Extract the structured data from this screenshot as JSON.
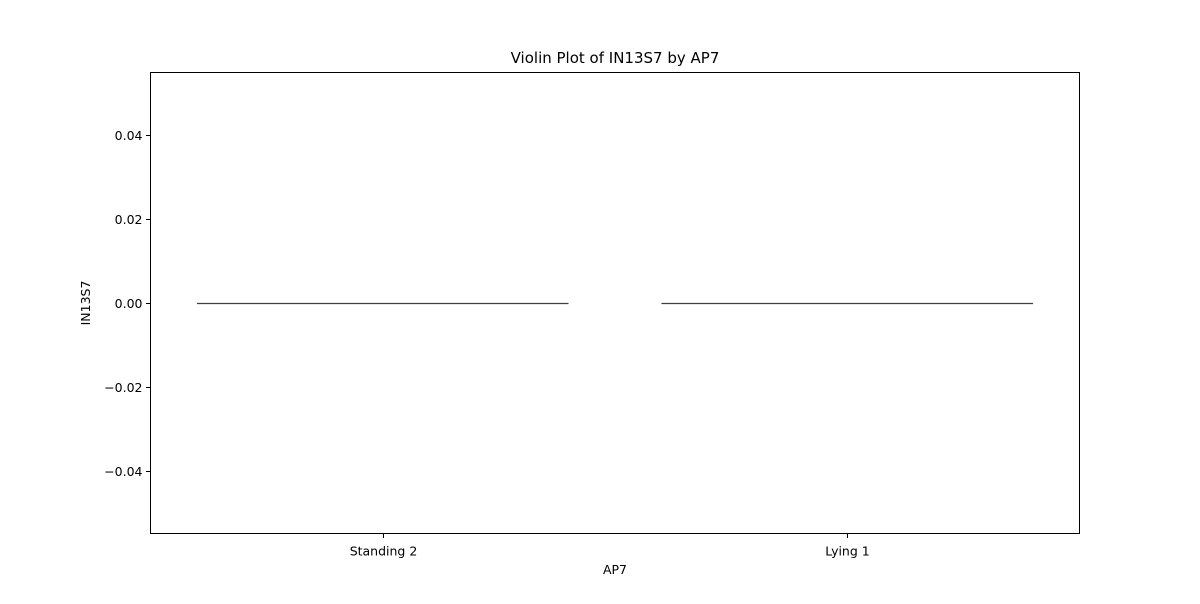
{
  "chart_data": {
    "type": "violin",
    "title": "Violin Plot of IN13S7 by AP7",
    "xlabel": "AP7",
    "ylabel": "IN13S7",
    "categories": [
      "Standing 2",
      "Lying 1"
    ],
    "values": [
      [
        0,
        0
      ],
      [
        0,
        0
      ]
    ],
    "ylim": [
      -0.055,
      0.055
    ],
    "yticks": [
      0.04,
      0.02,
      0.0,
      -0.02,
      -0.04
    ],
    "ytick_labels": [
      "0.04",
      "0.02",
      "0.00",
      "−0.02",
      "−0.04"
    ],
    "grid": false,
    "legend": "none",
    "colors": {
      "line": "#3f3f3f",
      "axes": "#000000",
      "background": "#ffffff"
    }
  }
}
